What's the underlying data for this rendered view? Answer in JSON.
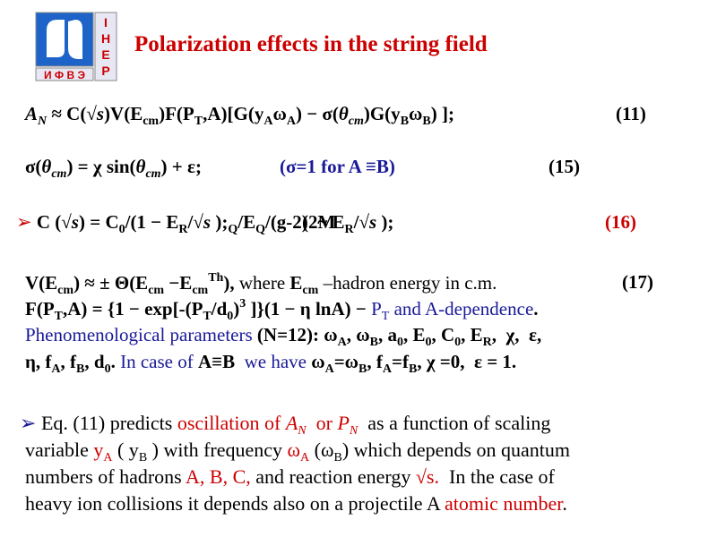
{
  "logo": {
    "column": [
      "I",
      "H",
      "E",
      "P"
    ],
    "row": "И Ф В Э"
  },
  "title": "Polarization effects in the string field",
  "lines": [
    [
      "A",
      "N",
      " ≈ C(√",
      "s",
      ")V(E",
      "cm",
      ")F(P",
      "T",
      ",A)[G(y",
      "A",
      "ω",
      "A",
      ") − σ(",
      "θ",
      "cm",
      ")G(y",
      "B",
      "ω",
      "B",
      ") ];",
      "(11)"
    ],
    [
      "σ(",
      "θ",
      "cm",
      ") = χ sin(",
      "θ",
      "cm",
      ") + ε;",
      "(σ=1 for A ≡B)",
      "(15)"
    ],
    [
      "➢",
      " C (√",
      "s",
      ") = C",
      "0",
      "/(1 − E",
      "R",
      "/√",
      "s",
      " );",
      "(2M",
      "Q",
      "/E",
      "Q",
      "/(g-2)  ~ E",
      "R",
      "/√",
      "s",
      " );",
      "(16)"
    ],
    [
      "V(E",
      "cm",
      ") ≈ ± Θ(E",
      "cm",
      " −E",
      "cm",
      "Th",
      "),",
      " where ",
      "E",
      "cm",
      " –hadron energy in c.m.",
      "(17)"
    ],
    [
      "F(P",
      "T",
      ",A) = {1 − exp[-(P",
      "T",
      "/d",
      "0",
      ")",
      "3",
      " ]}(1 − η lnA) − ",
      "P",
      "T",
      " and A-dependence",
      "."
    ],
    [
      "Phenomenological parameters ",
      "(N=12): ω",
      "A",
      ", ω",
      "B",
      ", a",
      "0",
      ", E",
      "0",
      ", C",
      "0",
      ", E",
      "R",
      ",  χ,  ε,"
    ],
    [
      "η, f",
      "A",
      ", f",
      "B",
      ", d",
      "0",
      ".",
      " In case of ",
      "A≡B",
      "  we have ",
      "ω",
      "A",
      "=ω",
      "B",
      ", f",
      "A",
      "=f",
      "B",
      ", χ =0,  ε = 1."
    ],
    [
      "➢",
      " Eq. (11) predicts ",
      "oscillation of ",
      "A",
      "N",
      "  or ",
      "P",
      "N",
      "  as a function of scaling"
    ],
    [
      "variable ",
      "y",
      "A",
      " ( y",
      "B",
      " ) with frequency ",
      "ω",
      "A",
      " (ω",
      "B",
      ") which depends on quantum"
    ],
    [
      "numbers of hadrons ",
      "A, B, C,",
      " and reaction energy ",
      "√s.",
      "  In the case of"
    ],
    [
      "heavy ion collisions it depends also on a projectile A ",
      "atomic number",
      "."
    ]
  ]
}
